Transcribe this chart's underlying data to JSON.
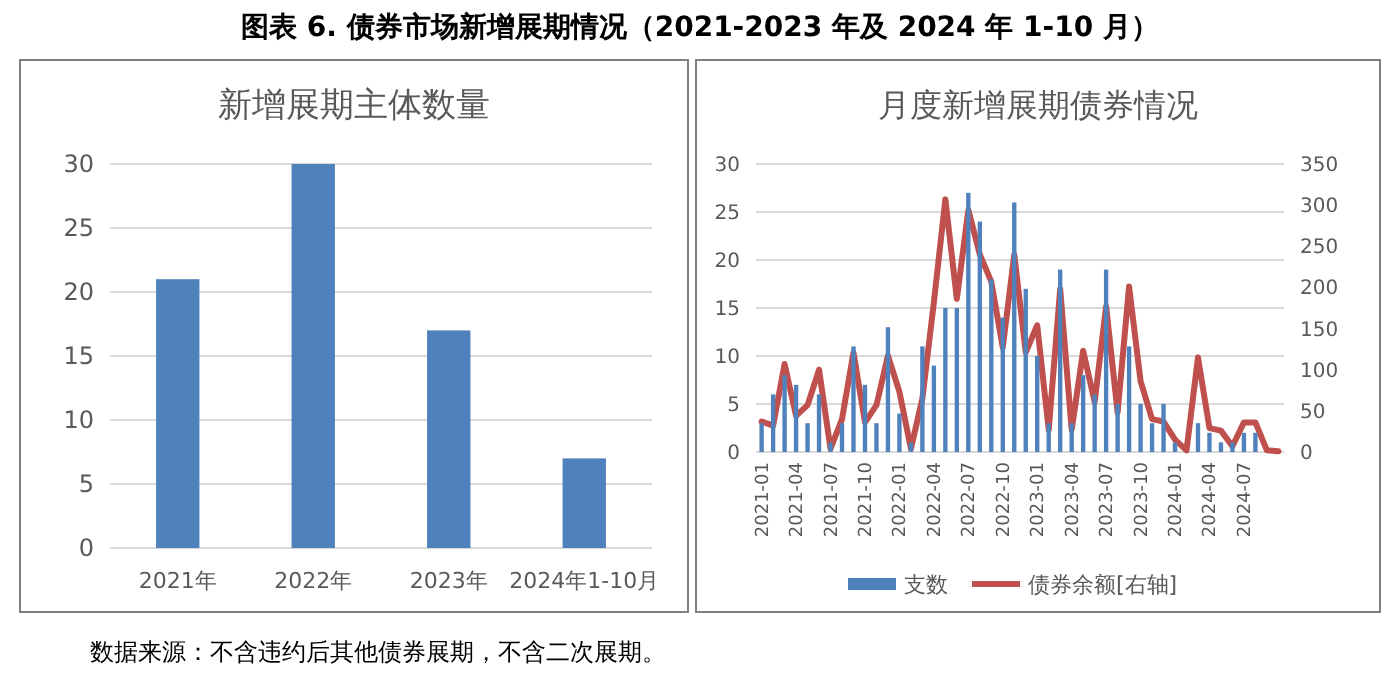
{
  "chart_data": [
    {
      "type": "bar",
      "title": "新增展期主体数量",
      "annotations": [
        "图表 6.  债券市场新增展期情况（2021-2023 年及 2024 年 1-10 月）",
        "数据来源：不含违约后其他债券展期，不含二次展期。"
      ],
      "categories": [
        "2021年",
        "2022年",
        "2023年",
        "2024年1-10月"
      ],
      "series": [
        {
          "color": "#4f81bd",
          "values": [
            21,
            30,
            17,
            7
          ]
        }
      ],
      "ylim": [
        0,
        30
      ],
      "yticks": [
        0,
        5,
        10,
        15,
        20,
        25,
        30
      ],
      "grid": "y",
      "legend": false
    },
    {
      "type": "bar",
      "title": "月度新增展期债券情况",
      "categories": [
        "2021-01",
        null,
        null,
        "2021-04",
        null,
        null,
        "2021-07",
        null,
        null,
        "2021-10",
        null,
        null,
        "2022-01",
        null,
        null,
        "2022-04",
        null,
        null,
        "2022-07",
        null,
        null,
        "2022-10",
        null,
        null,
        "2023-01",
        null,
        null,
        "2023-04",
        null,
        null,
        "2023-07",
        null,
        null,
        "2023-10",
        null,
        null,
        "2024-01",
        null,
        null,
        "2024-04",
        null,
        null,
        "2024-07",
        null,
        null,
        null
      ],
      "series": [
        {
          "name": "支数",
          "color": "#4f81bd",
          "values": [
            3,
            6,
            8,
            7,
            3,
            6,
            1,
            3,
            11,
            7,
            3,
            13,
            4,
            1,
            11,
            9,
            15,
            15,
            27,
            24,
            18,
            14,
            26,
            17,
            10,
            3,
            19,
            3,
            8,
            6,
            19,
            5,
            11,
            5,
            3,
            5,
            1,
            0,
            3,
            2,
            1,
            1,
            2,
            2,
            0,
            0
          ]
        },
        {
          "name": "债券余额[右轴]",
          "type": "line",
          "axis": "y2",
          "color": "#c0504d",
          "values": [
            37,
            32,
            107,
            44,
            57,
            100,
            4,
            40,
            121,
            36,
            57,
            117,
            73,
            4,
            65,
            182,
            307,
            186,
            294,
            240,
            207,
            127,
            240,
            121,
            154,
            27,
            198,
            27,
            123,
            61,
            177,
            48,
            201,
            86,
            40,
            37,
            15,
            2,
            115,
            29,
            26,
            7,
            36,
            36,
            2,
            1
          ]
        }
      ],
      "ylim": [
        0,
        30
      ],
      "yticks": [
        0,
        5,
        10,
        15,
        20,
        25,
        30
      ],
      "y2lim": [
        0,
        350
      ],
      "y2ticks": [
        0,
        50,
        100,
        150,
        200,
        250,
        300,
        350
      ],
      "grid": "y",
      "legend": "bottom"
    }
  ]
}
